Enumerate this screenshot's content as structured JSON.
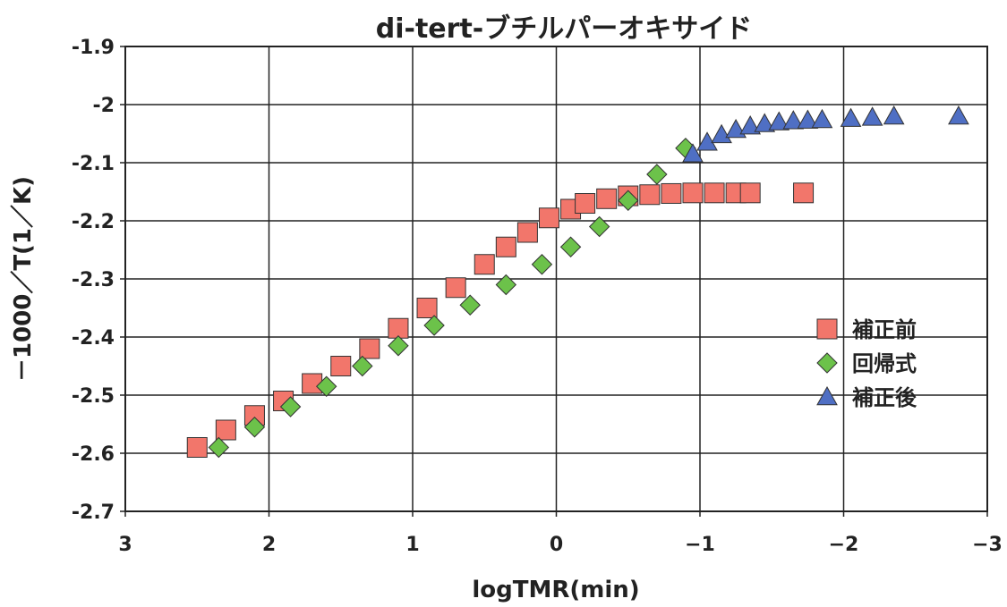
{
  "chart_data": {
    "type": "scatter",
    "title": "di-tert-ブチルパーオキサイド",
    "xlabel": "logTMR(min)",
    "ylabel": "－1000／T(1／K)",
    "xlim": [
      3,
      -3
    ],
    "ylim": [
      -2.7,
      -1.9
    ],
    "x_reversed": true,
    "grid": true,
    "legend_position": "right",
    "x_ticks": [
      3,
      2,
      1,
      0,
      -1,
      -2,
      -3
    ],
    "y_ticks": [
      -1.9,
      -2,
      -2.1,
      -2.2,
      -2.3,
      -2.4,
      -2.5,
      -2.6,
      -2.7
    ],
    "x_tick_labels": [
      "3",
      "2",
      "1",
      "0",
      "−1",
      "−2",
      "−3"
    ],
    "y_tick_labels": [
      "-1.9",
      "-2",
      "-2.1",
      "-2.2",
      "-2.3",
      "-2.4",
      "-2.5",
      "-2.6",
      "-2.7"
    ],
    "series": [
      {
        "name": "補正前",
        "marker": "square",
        "color": "#f2766b",
        "points": [
          [
            2.5,
            -2.59
          ],
          [
            2.3,
            -2.56
          ],
          [
            2.1,
            -2.535
          ],
          [
            1.9,
            -2.51
          ],
          [
            1.7,
            -2.48
          ],
          [
            1.5,
            -2.45
          ],
          [
            1.3,
            -2.42
          ],
          [
            1.1,
            -2.385
          ],
          [
            0.9,
            -2.35
          ],
          [
            0.7,
            -2.315
          ],
          [
            0.5,
            -2.275
          ],
          [
            0.35,
            -2.245
          ],
          [
            0.2,
            -2.22
          ],
          [
            0.05,
            -2.195
          ],
          [
            -0.1,
            -2.18
          ],
          [
            -0.2,
            -2.17
          ],
          [
            -0.35,
            -2.162
          ],
          [
            -0.5,
            -2.157
          ],
          [
            -0.65,
            -2.155
          ],
          [
            -0.8,
            -2.153
          ],
          [
            -0.95,
            -2.152
          ],
          [
            -1.1,
            -2.152
          ],
          [
            -1.25,
            -2.152
          ],
          [
            -1.35,
            -2.152
          ],
          [
            -1.72,
            -2.152
          ]
        ]
      },
      {
        "name": "回帰式",
        "marker": "diamond",
        "color": "#6cc24a",
        "points": [
          [
            2.35,
            -2.59
          ],
          [
            2.1,
            -2.555
          ],
          [
            1.85,
            -2.52
          ],
          [
            1.6,
            -2.485
          ],
          [
            1.35,
            -2.45
          ],
          [
            1.1,
            -2.415
          ],
          [
            0.85,
            -2.38
          ],
          [
            0.6,
            -2.345
          ],
          [
            0.35,
            -2.31
          ],
          [
            0.1,
            -2.275
          ],
          [
            -0.1,
            -2.245
          ],
          [
            -0.3,
            -2.21
          ],
          [
            -0.5,
            -2.165
          ],
          [
            -0.7,
            -2.12
          ],
          [
            -0.9,
            -2.075
          ]
        ]
      },
      {
        "name": "補正後",
        "marker": "triangle",
        "color": "#4f6fc4",
        "points": [
          [
            -0.95,
            -2.085
          ],
          [
            -1.05,
            -2.065
          ],
          [
            -1.15,
            -2.052
          ],
          [
            -1.25,
            -2.043
          ],
          [
            -1.35,
            -2.037
          ],
          [
            -1.45,
            -2.033
          ],
          [
            -1.55,
            -2.03
          ],
          [
            -1.65,
            -2.028
          ],
          [
            -1.75,
            -2.027
          ],
          [
            -1.85,
            -2.026
          ],
          [
            -2.05,
            -2.024
          ],
          [
            -2.2,
            -2.022
          ],
          [
            -2.35,
            -2.02
          ],
          [
            -2.8,
            -2.02
          ]
        ]
      }
    ]
  }
}
